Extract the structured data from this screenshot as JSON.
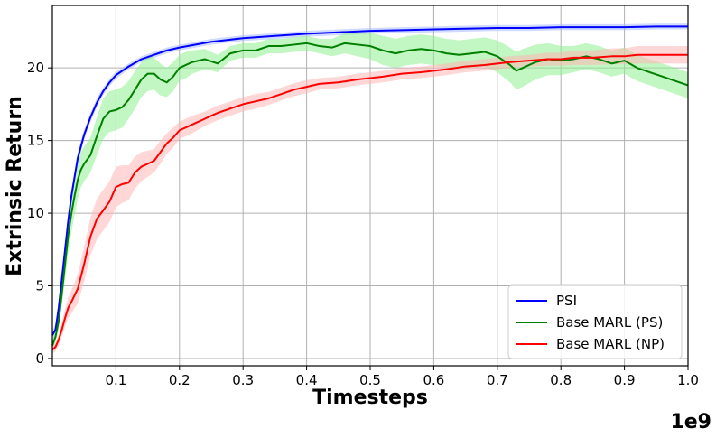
{
  "chart_data": {
    "type": "line",
    "xlabel": "Timesteps",
    "ylabel": "Extrinsic Return",
    "x_offset_label": "1e9",
    "xlim": [
      0.0,
      1.0
    ],
    "ylim": [
      -0.5,
      24.3
    ],
    "grid": true,
    "legend_position": "bottom-right",
    "x_ticks": [
      0.1,
      0.2,
      0.3,
      0.4,
      0.5,
      0.6,
      0.7,
      0.8,
      0.9,
      1.0
    ],
    "x_tick_labels": [
      "0.1",
      "0.2",
      "0.3",
      "0.4",
      "0.5",
      "0.6",
      "0.7",
      "0.8",
      "0.9",
      "1.0"
    ],
    "y_ticks": [
      0,
      5,
      10,
      15,
      20
    ],
    "y_tick_labels": [
      "0",
      "5",
      "10",
      "15",
      "20"
    ],
    "series": [
      {
        "name": "PSI",
        "color": "#0000ff",
        "band_color": "#aabbff",
        "x": [
          0.0,
          0.005,
          0.01,
          0.015,
          0.02,
          0.025,
          0.03,
          0.04,
          0.05,
          0.06,
          0.07,
          0.08,
          0.09,
          0.1,
          0.12,
          0.14,
          0.16,
          0.18,
          0.2,
          0.25,
          0.3,
          0.35,
          0.4,
          0.45,
          0.5,
          0.55,
          0.6,
          0.65,
          0.7,
          0.75,
          0.8,
          0.85,
          0.9,
          0.95,
          1.0
        ],
        "y": [
          1.6,
          2.0,
          3.5,
          5.5,
          7.5,
          9.5,
          11.2,
          13.8,
          15.4,
          16.6,
          17.6,
          18.4,
          19.0,
          19.5,
          20.1,
          20.6,
          20.9,
          21.2,
          21.4,
          21.8,
          22.05,
          22.2,
          22.35,
          22.45,
          22.55,
          22.6,
          22.65,
          22.7,
          22.75,
          22.75,
          22.8,
          22.8,
          22.8,
          22.85,
          22.85
        ],
        "band": [
          0.35,
          0.35,
          0.45,
          0.5,
          0.5,
          0.5,
          0.45,
          0.4,
          0.35,
          0.3,
          0.3,
          0.25,
          0.25,
          0.25,
          0.2,
          0.2,
          0.2,
          0.2,
          0.2,
          0.2,
          0.2,
          0.2,
          0.2,
          0.2,
          0.2,
          0.2,
          0.2,
          0.2,
          0.2,
          0.2,
          0.2,
          0.2,
          0.2,
          0.2,
          0.2
        ]
      },
      {
        "name": "Base MARL (PS)",
        "color": "#008000",
        "band_color": "#90ee90",
        "x": [
          0.0,
          0.005,
          0.01,
          0.015,
          0.02,
          0.025,
          0.03,
          0.035,
          0.04,
          0.045,
          0.05,
          0.06,
          0.07,
          0.08,
          0.09,
          0.1,
          0.11,
          0.12,
          0.13,
          0.14,
          0.15,
          0.16,
          0.17,
          0.18,
          0.19,
          0.2,
          0.21,
          0.22,
          0.24,
          0.26,
          0.28,
          0.3,
          0.32,
          0.34,
          0.36,
          0.38,
          0.4,
          0.42,
          0.44,
          0.46,
          0.48,
          0.5,
          0.52,
          0.54,
          0.56,
          0.58,
          0.6,
          0.62,
          0.64,
          0.66,
          0.68,
          0.7,
          0.72,
          0.73,
          0.74,
          0.76,
          0.78,
          0.8,
          0.82,
          0.84,
          0.86,
          0.88,
          0.9,
          0.92,
          0.94,
          0.96,
          0.98,
          1.0
        ],
        "y": [
          0.9,
          1.5,
          2.6,
          4.5,
          6.5,
          8.5,
          10.0,
          11.2,
          12.3,
          13.0,
          13.4,
          14.0,
          15.3,
          16.5,
          17.0,
          17.1,
          17.3,
          17.8,
          18.5,
          19.2,
          19.6,
          19.6,
          19.2,
          19.0,
          19.4,
          20.0,
          20.2,
          20.4,
          20.6,
          20.3,
          21.0,
          21.2,
          21.2,
          21.5,
          21.5,
          21.6,
          21.7,
          21.5,
          21.4,
          21.7,
          21.6,
          21.5,
          21.2,
          21.0,
          21.2,
          21.3,
          21.2,
          21.0,
          20.9,
          21.0,
          21.1,
          20.8,
          20.2,
          19.8,
          20.0,
          20.4,
          20.6,
          20.5,
          20.6,
          20.8,
          20.6,
          20.3,
          20.5,
          20.0,
          19.7,
          19.4,
          19.1,
          18.8
        ],
        "band": [
          0.3,
          0.4,
          0.6,
          0.8,
          1.0,
          1.2,
          1.3,
          1.3,
          1.3,
          1.2,
          1.2,
          1.2,
          1.3,
          1.4,
          1.4,
          1.4,
          1.4,
          1.3,
          1.3,
          1.2,
          1.2,
          1.1,
          1.1,
          1.0,
          1.0,
          0.9,
          0.9,
          0.8,
          0.7,
          0.6,
          0.5,
          0.5,
          0.5,
          0.5,
          0.5,
          0.5,
          0.5,
          0.5,
          0.6,
          0.7,
          0.8,
          0.9,
          1.0,
          1.0,
          1.0,
          1.0,
          1.0,
          1.0,
          1.0,
          1.0,
          1.0,
          1.1,
          1.2,
          1.3,
          1.3,
          1.2,
          1.1,
          1.0,
          0.9,
          0.9,
          0.9,
          0.9,
          0.9,
          0.9,
          0.9,
          0.9,
          0.9,
          0.9
        ]
      },
      {
        "name": "Base MARL (NP)",
        "color": "#ff0000",
        "band_color": "#ffb6b6",
        "x": [
          0.0,
          0.005,
          0.01,
          0.015,
          0.02,
          0.025,
          0.03,
          0.04,
          0.05,
          0.06,
          0.07,
          0.08,
          0.09,
          0.1,
          0.11,
          0.12,
          0.13,
          0.14,
          0.15,
          0.16,
          0.17,
          0.18,
          0.19,
          0.2,
          0.22,
          0.24,
          0.26,
          0.28,
          0.3,
          0.32,
          0.34,
          0.36,
          0.38,
          0.4,
          0.42,
          0.45,
          0.48,
          0.5,
          0.52,
          0.55,
          0.58,
          0.6,
          0.62,
          0.65,
          0.68,
          0.7,
          0.72,
          0.75,
          0.78,
          0.8,
          0.82,
          0.85,
          0.88,
          0.9,
          0.92,
          0.95,
          0.98,
          1.0
        ],
        "y": [
          0.6,
          0.8,
          1.3,
          2.0,
          2.8,
          3.5,
          3.9,
          4.8,
          6.5,
          8.4,
          9.6,
          10.2,
          10.8,
          11.8,
          12.0,
          12.1,
          12.8,
          13.2,
          13.4,
          13.6,
          14.2,
          14.8,
          15.2,
          15.7,
          16.1,
          16.5,
          16.9,
          17.2,
          17.5,
          17.7,
          17.9,
          18.2,
          18.5,
          18.7,
          18.9,
          19.0,
          19.2,
          19.3,
          19.4,
          19.6,
          19.7,
          19.8,
          19.9,
          20.1,
          20.2,
          20.3,
          20.4,
          20.5,
          20.6,
          20.6,
          20.7,
          20.7,
          20.8,
          20.8,
          20.9,
          20.9,
          20.9,
          20.9
        ],
        "band": [
          0.3,
          0.3,
          0.4,
          0.5,
          0.6,
          0.7,
          0.8,
          1.0,
          1.2,
          1.3,
          1.4,
          1.4,
          1.4,
          1.4,
          1.3,
          1.2,
          1.1,
          1.0,
          0.9,
          0.8,
          0.8,
          0.7,
          0.7,
          0.6,
          0.6,
          0.5,
          0.5,
          0.5,
          0.5,
          0.5,
          0.45,
          0.45,
          0.45,
          0.45,
          0.4,
          0.4,
          0.4,
          0.4,
          0.4,
          0.4,
          0.4,
          0.4,
          0.4,
          0.4,
          0.4,
          0.4,
          0.4,
          0.4,
          0.45,
          0.45,
          0.5,
          0.5,
          0.55,
          0.55,
          0.6,
          0.6,
          0.6,
          0.6
        ]
      }
    ]
  }
}
